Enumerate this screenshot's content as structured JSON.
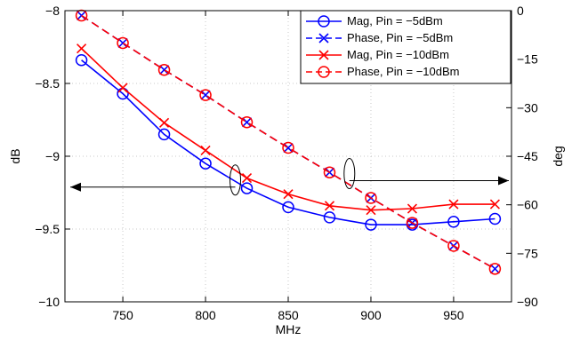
{
  "chart_data": {
    "type": "line",
    "xlabel": "MHz",
    "ylabel_left": "dB",
    "ylabel_right": "deg",
    "xlim": [
      715,
      985
    ],
    "ylim_left": [
      -10,
      -8
    ],
    "ylim_right": [
      -90,
      0
    ],
    "x_ticks": [
      750,
      800,
      850,
      900,
      950
    ],
    "y_ticks_left": [
      "-8",
      "-8.5",
      "-9",
      "-9.5",
      "-10"
    ],
    "y_ticks_left_values": [
      -8,
      -8.5,
      -9,
      -9.5,
      -10
    ],
    "y_ticks_right": [
      "0",
      "-15",
      "-30",
      "-45",
      "-60",
      "-75",
      "-90"
    ],
    "y_ticks_right_values": [
      0,
      -15,
      -30,
      -45,
      -60,
      -75,
      -90
    ],
    "grid": "dotted",
    "legend_position": "top-right",
    "x": [
      725,
      750,
      775,
      800,
      825,
      850,
      875,
      900,
      925,
      950,
      975
    ],
    "series": [
      {
        "name": "Mag, Pin = −5dBm",
        "axis": "left",
        "color": "#0000ff",
        "line_style": "solid",
        "marker": "circle",
        "values": [
          -8.34,
          -8.57,
          -8.85,
          -9.05,
          -9.22,
          -9.35,
          -9.42,
          -9.47,
          -9.47,
          -9.45,
          -9.43
        ]
      },
      {
        "name": "Phase, Pin = −5dBm",
        "axis": "right",
        "color": "#0000ff",
        "line_style": "dashed",
        "marker": "x",
        "values": [
          -1.5,
          -10.0,
          -18.3,
          -26.1,
          -34.5,
          -42.4,
          -50.0,
          -57.9,
          -65.6,
          -72.7,
          -79.8
        ]
      },
      {
        "name": "Mag, Pin = −10dBm",
        "axis": "left",
        "color": "#ff0000",
        "line_style": "solid",
        "marker": "x",
        "values": [
          -8.26,
          -8.53,
          -8.77,
          -8.96,
          -9.15,
          -9.26,
          -9.34,
          -9.37,
          -9.36,
          -9.33,
          -9.33
        ]
      },
      {
        "name": "Phase, Pin = −10dBm",
        "axis": "right",
        "color": "#ff0000",
        "line_style": "dashed",
        "marker": "circle",
        "values": [
          -1.5,
          -10.0,
          -18.3,
          -26.1,
          -34.5,
          -42.4,
          -50.0,
          -57.9,
          -65.6,
          -72.7,
          -79.8
        ]
      }
    ],
    "annotations": [
      {
        "type": "ellipse-arrow",
        "direction": "left",
        "at_x": 818,
        "at_y_left": -9.2
      },
      {
        "type": "ellipse-arrow",
        "direction": "right",
        "at_x": 887,
        "at_y_right": -52
      }
    ]
  }
}
